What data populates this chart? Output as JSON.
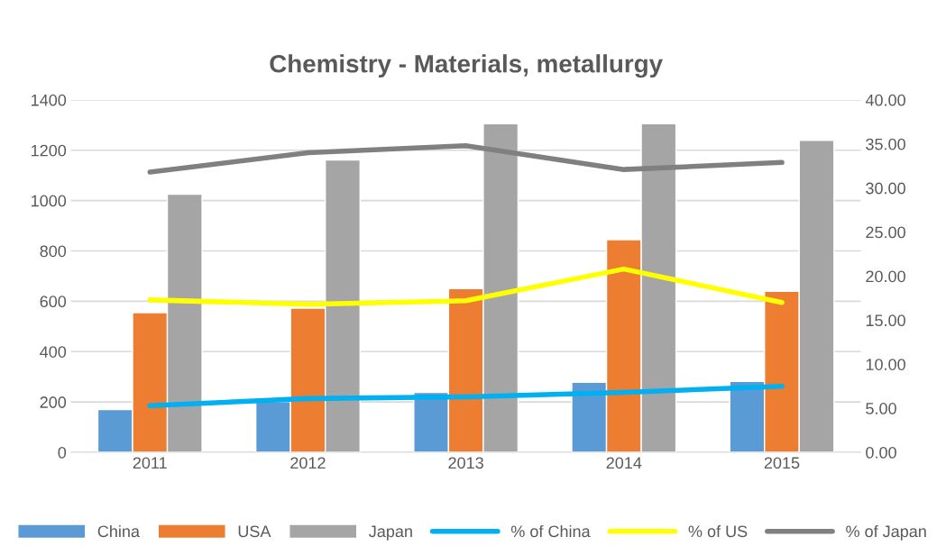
{
  "chart_data": {
    "type": "bar",
    "title": "Chemistry - Materials, metallurgy",
    "categories": [
      "2011",
      "2012",
      "2013",
      "2014",
      "2015"
    ],
    "series": [
      {
        "name": "China",
        "color": "#5b9bd5",
        "values": [
          170,
          201,
          238,
          278,
          282
        ]
      },
      {
        "name": "USA",
        "color": "#ed7d31",
        "values": [
          555,
          573,
          650,
          845,
          640
        ]
      },
      {
        "name": "Japan",
        "color": "#a5a5a5",
        "values": [
          1025,
          1161,
          1305,
          1305,
          1239
        ]
      },
      {
        "name": "% of China",
        "type": "line",
        "axis": "y2",
        "color": "#00b0f0",
        "values": [
          5.3,
          6.1,
          6.3,
          6.8,
          7.5
        ]
      },
      {
        "name": "% of US",
        "type": "line",
        "axis": "y2",
        "color": "#ffff00",
        "values": [
          17.3,
          16.8,
          17.2,
          20.8,
          17.0
        ]
      },
      {
        "name": "% of Japan",
        "type": "line",
        "axis": "y2",
        "color": "#808080",
        "values": [
          31.8,
          34.0,
          34.8,
          32.1,
          32.9
        ]
      }
    ],
    "ylim": [
      0,
      1400
    ],
    "yticks": [
      0,
      200,
      400,
      600,
      800,
      1000,
      1200,
      1400
    ],
    "y2lim": [
      0,
      40
    ],
    "y2ticks": [
      {
        "value": 0,
        "label": "0.00"
      },
      {
        "value": 5,
        "label": "5.00"
      },
      {
        "value": 10,
        "label": "10.00"
      },
      {
        "value": 15,
        "label": "15.00"
      },
      {
        "value": 20,
        "label": "20.00"
      },
      {
        "value": 25,
        "label": "25.00"
      },
      {
        "value": 30,
        "label": "30.00"
      },
      {
        "value": 35,
        "label": "35.00"
      },
      {
        "value": 40,
        "label": "40.00"
      }
    ],
    "grid": "y",
    "legend": "bottom",
    "marker": "none",
    "line_style": "solid"
  }
}
